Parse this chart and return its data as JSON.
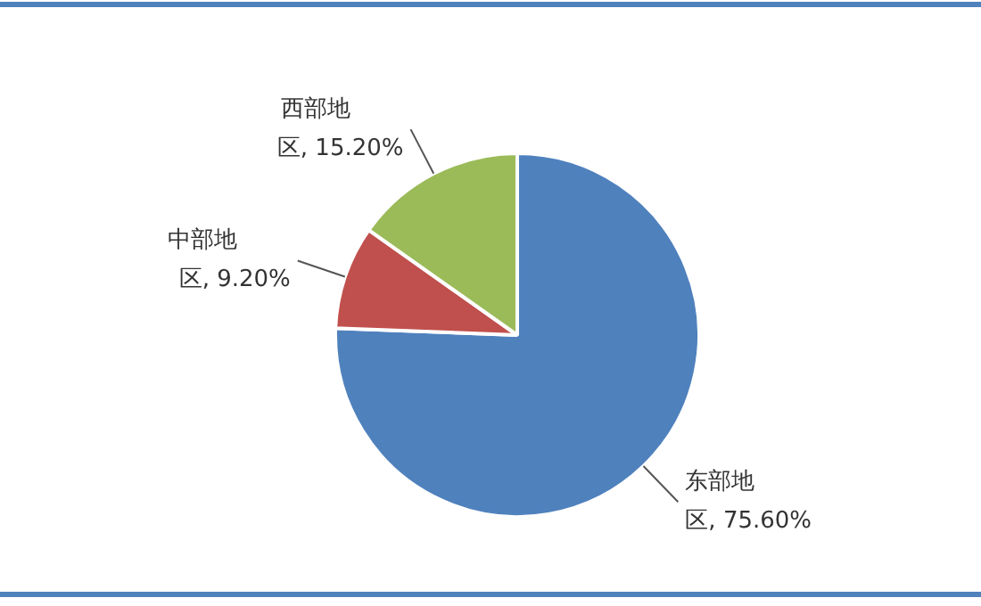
{
  "chart_data": {
    "type": "pie",
    "categories": [
      "东部地区",
      "中部地区",
      "西部地区"
    ],
    "values": [
      75.6,
      9.2,
      15.2
    ],
    "value_labels": [
      "75.60%",
      "9.20%",
      "15.20%"
    ],
    "colors": [
      "#4f81bd",
      "#c0504d",
      "#9bbb59"
    ],
    "legend": false
  }
}
